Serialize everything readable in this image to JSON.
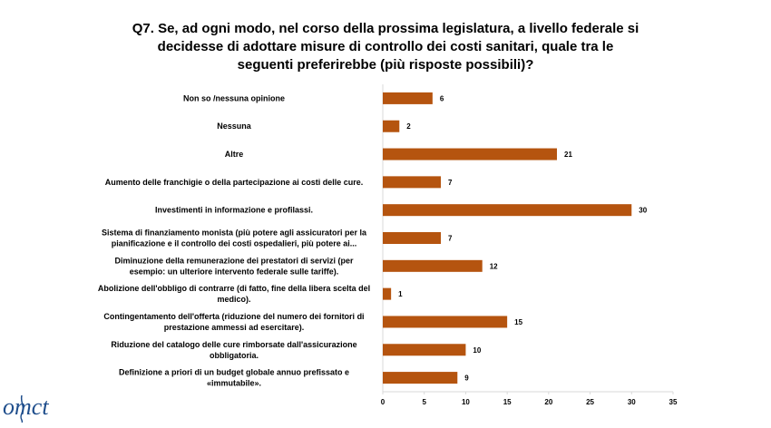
{
  "title_lines": [
    "Q7. Se, ad ogni modo, nel corso della prossima legislatura, a livello federale si",
    "decidesse di adottare misure di controllo dei costi sanitari, quale tra le",
    "seguenti preferirebbe (più risposte possibili)?"
  ],
  "logo_text": "omct",
  "colors": {
    "bar": "#b5540f",
    "axis": "#d9d9d9",
    "text": "#000000"
  },
  "chart_data": {
    "type": "bar",
    "orientation": "horizontal",
    "categories": [
      [
        "Non so /nessuna opinione"
      ],
      [
        "Nessuna"
      ],
      [
        "Altre"
      ],
      [
        "Aumento delle franchigie o della partecipazione ai costi delle cure."
      ],
      [
        "Investimenti in informazione e profilassi."
      ],
      [
        "Sistema di finanziamento monista (più potere agli assicuratori per la",
        "pianificazione e il controllo dei costi ospedalieri, più potere ai..."
      ],
      [
        "Diminuzione della remunerazione dei prestatori di servizi (per",
        "esempio: un ulteriore intervento federale sulle tariffe)."
      ],
      [
        "Abolizione dell'obbligo di contrarre (di fatto, fine della libera scelta del",
        "medico)."
      ],
      [
        "Contingentamento dell'offerta (riduzione del numero dei fornitori di",
        "prestazione ammessi ad esercitare)."
      ],
      [
        "Riduzione del catalogo delle cure rimborsate dall'assicurazione",
        "obbligatoria."
      ],
      [
        "Definizione a priori di un budget globale annuo prefissato e",
        "«immutabile»."
      ]
    ],
    "values": [
      6,
      2,
      21,
      7,
      30,
      7,
      12,
      1,
      15,
      10,
      9
    ],
    "data_labels": [
      "6",
      "2",
      "21",
      "7",
      "30",
      "7",
      "12",
      "1",
      "15",
      "10",
      "9"
    ],
    "xlim": [
      0,
      35
    ],
    "xticks": [
      "0",
      "5",
      "10",
      "15",
      "20",
      "25",
      "30",
      "35"
    ],
    "grid": false,
    "legend": "none"
  }
}
